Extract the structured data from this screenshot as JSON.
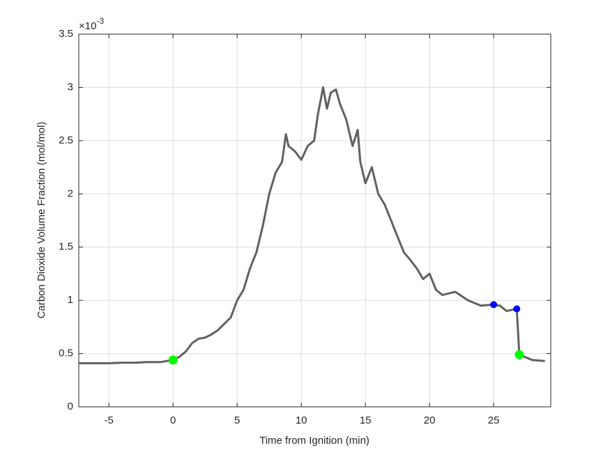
{
  "chart_data": {
    "type": "line",
    "xlabel": "Time from Ignition (min)",
    "ylabel": "Carbon Dioxide Volume Fraction (mol/mol)",
    "y_exponent_base": "×10",
    "y_exponent": "-3",
    "xlim": [
      -7.35,
      29.45
    ],
    "ylim": [
      0,
      3.5
    ],
    "xticks": [
      -5,
      0,
      5,
      10,
      15,
      20,
      25
    ],
    "yticks": [
      0,
      0.5,
      1,
      1.5,
      2,
      2.5,
      3,
      3.5
    ],
    "grid": true,
    "series": [
      {
        "color": "#606060",
        "x": [
          -7.35,
          -6,
          -5,
          -4,
          -3,
          -2,
          -1,
          0,
          0.5,
          1,
          1.5,
          2,
          2.5,
          3,
          3.5,
          4,
          4.5,
          5,
          5.5,
          6,
          6.5,
          7,
          7.5,
          8,
          8.5,
          8.8,
          9,
          9.5,
          10,
          10.5,
          11,
          11.3,
          11.7,
          12,
          12.3,
          12.7,
          13,
          13.5,
          14,
          14.4,
          14.6,
          15,
          15.5,
          16,
          16.5,
          17,
          17.5,
          18,
          18.5,
          19,
          19.5,
          20,
          20.5,
          21,
          22,
          23,
          24,
          25,
          25.5,
          26,
          26.8,
          27,
          28,
          29
        ],
        "values": [
          0.41,
          0.41,
          0.41,
          0.415,
          0.415,
          0.42,
          0.42,
          0.44,
          0.47,
          0.52,
          0.6,
          0.64,
          0.65,
          0.68,
          0.72,
          0.78,
          0.84,
          1.0,
          1.1,
          1.3,
          1.45,
          1.7,
          2.0,
          2.2,
          2.3,
          2.56,
          2.45,
          2.4,
          2.32,
          2.45,
          2.5,
          2.75,
          3.0,
          2.8,
          2.95,
          2.98,
          2.85,
          2.7,
          2.45,
          2.6,
          2.3,
          2.1,
          2.25,
          2.0,
          1.9,
          1.75,
          1.6,
          1.45,
          1.38,
          1.3,
          1.2,
          1.25,
          1.1,
          1.05,
          1.08,
          1.0,
          0.95,
          0.96,
          0.95,
          0.9,
          0.92,
          0.49,
          0.44,
          0.43
        ]
      }
    ],
    "markers": [
      {
        "color": "#00ff00",
        "x": [
          0,
          27
        ],
        "values": [
          0.44,
          0.49
        ]
      },
      {
        "color": "#0000ff",
        "x": [
          25,
          26.8
        ],
        "values": [
          0.96,
          0.92
        ]
      }
    ]
  }
}
